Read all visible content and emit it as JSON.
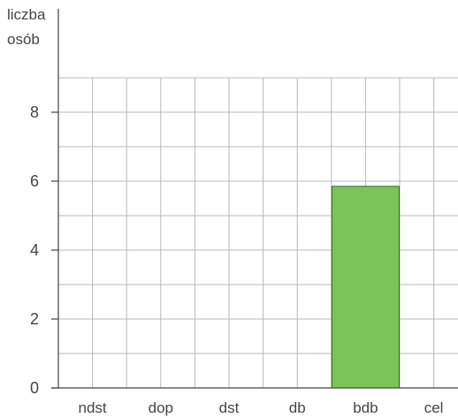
{
  "chart_data": {
    "type": "bar",
    "ylabel_lines": [
      "liczba",
      "osób"
    ],
    "categories": [
      "ndst",
      "dop",
      "dst",
      "db",
      "bdb",
      "cel"
    ],
    "values": [
      0,
      0,
      0,
      0,
      5.85,
      0
    ],
    "ylim": [
      0,
      9
    ],
    "yticks": [
      0,
      2,
      4,
      6,
      8
    ],
    "grid": true,
    "bar_color": "#7cc35a",
    "bar_edge_color": "#2f6a1c",
    "grid_color": "#b8b8b8",
    "axis_color": "#444444"
  }
}
